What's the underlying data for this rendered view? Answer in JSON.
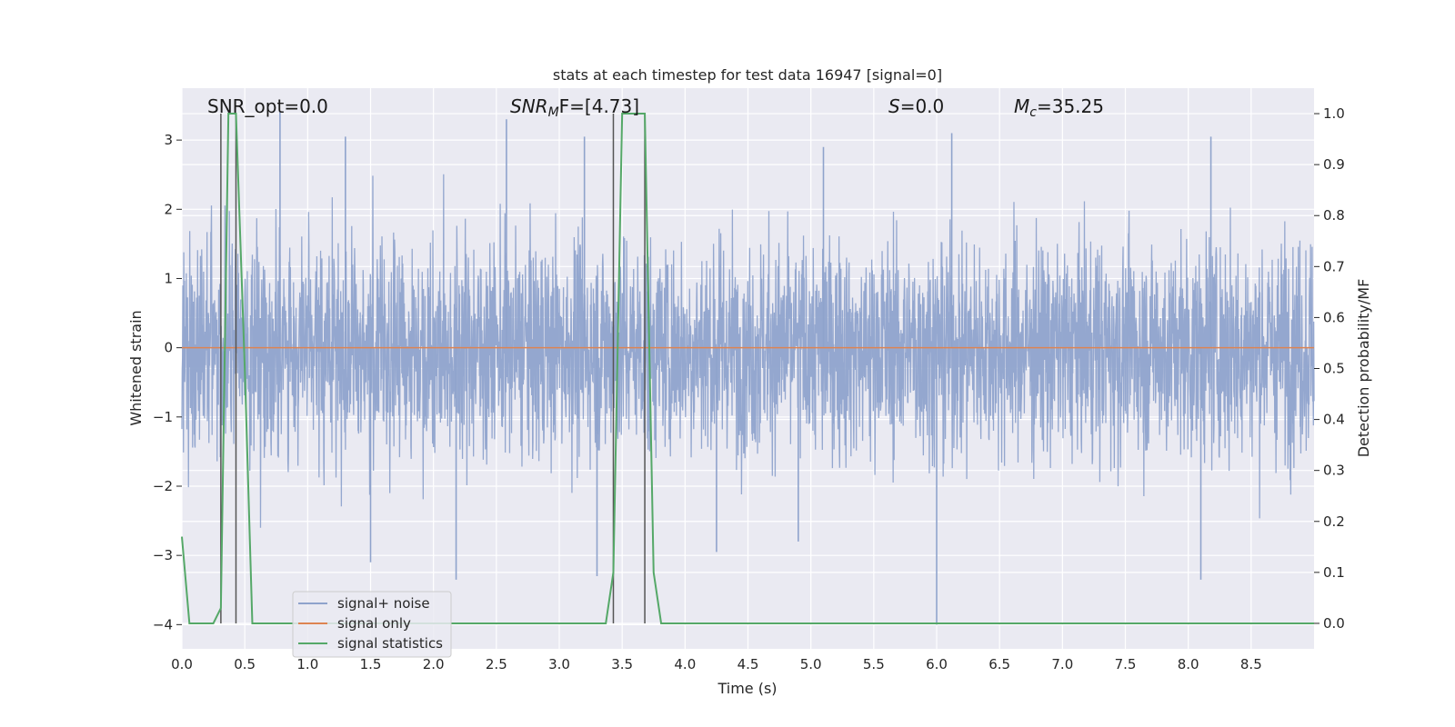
{
  "chart_data": {
    "type": "line",
    "title": "stats at each timestep for test data 16947 [signal=0]",
    "xlabel": "Time (s)",
    "ylabel": "Whitened strain",
    "y2label": "Detection probability/MF",
    "xlim": [
      0,
      9
    ],
    "ylim": [
      -4.35,
      3.75
    ],
    "y2lim": [
      -0.05,
      1.05
    ],
    "xticks": [
      "0.0",
      "0.5",
      "1.0",
      "1.5",
      "2.0",
      "2.5",
      "3.0",
      "3.5",
      "4.0",
      "4.5",
      "5.0",
      "5.5",
      "6.0",
      "6.5",
      "7.0",
      "7.5",
      "8.0",
      "8.5"
    ],
    "yticks": [
      "−4",
      "−3",
      "−2",
      "−1",
      "0",
      "1",
      "2",
      "3"
    ],
    "y2ticks": [
      "0.0",
      "0.1",
      "0.2",
      "0.3",
      "0.4",
      "0.5",
      "0.6",
      "0.7",
      "0.8",
      "0.9",
      "1.0"
    ],
    "grid": true,
    "legend_position": "lower-left",
    "annotations": {
      "snr_opt": "SNR_opt=0.0",
      "snr_mf_sym": "SNR",
      "snr_mf_sub": "M",
      "snr_mf_rest": "F=[4.73]",
      "s_sym": "S",
      "s_rest": "=0.0",
      "mc_sym": "M",
      "mc_sub": "c",
      "mc_rest": "=35.25"
    },
    "series": [
      {
        "name": "signal+ noise",
        "color": "#8fa3cc",
        "note_only": "dense noisy strain, roughly within ±2 with spikes to ±3",
        "noise_envelope": [
          -2.2,
          2.2
        ],
        "spikes": [
          {
            "x": 0.78,
            "y": 3.4
          },
          {
            "x": 1.3,
            "y": 3.05
          },
          {
            "x": 2.58,
            "y": 3.3
          },
          {
            "x": 3.2,
            "y": 3.05
          },
          {
            "x": 5.1,
            "y": 2.9
          },
          {
            "x": 6.12,
            "y": 3.1
          },
          {
            "x": 8.18,
            "y": 3.05
          },
          {
            "x": 1.5,
            "y": -3.1
          },
          {
            "x": 2.18,
            "y": -3.35
          },
          {
            "x": 3.3,
            "y": -3.3
          },
          {
            "x": 4.25,
            "y": -2.95
          },
          {
            "x": 4.9,
            "y": -2.8
          },
          {
            "x": 6.0,
            "y": -4.0
          },
          {
            "x": 8.1,
            "y": -3.35
          }
        ]
      },
      {
        "name": "signal only",
        "color": "#dd8452",
        "x": [
          0,
          9
        ],
        "y": [
          0,
          0
        ]
      },
      {
        "name": "signal statistics",
        "color": "#55a868",
        "axis": "right",
        "x": [
          0.0,
          0.06,
          0.12,
          0.25,
          0.31,
          0.37,
          0.43,
          0.5,
          0.56,
          0.62,
          3.37,
          3.43,
          3.5,
          3.56,
          3.62,
          3.68,
          3.75,
          3.81,
          3.87,
          9.0
        ],
        "y": [
          0.17,
          0.0,
          0.0,
          0.0,
          0.03,
          1.0,
          1.0,
          0.5,
          0.0,
          0.0,
          0.0,
          0.1,
          1.0,
          1.0,
          1.0,
          1.0,
          0.1,
          0.0,
          0.0,
          0.0
        ]
      }
    ],
    "vertical_markers": [
      0.31,
      0.43,
      3.43,
      3.68
    ]
  }
}
